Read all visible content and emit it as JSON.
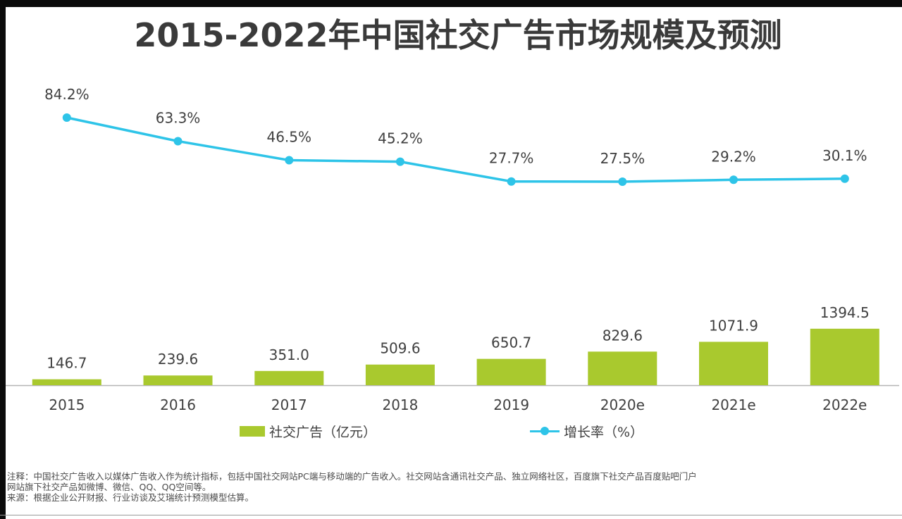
{
  "title": "2015-2022年中国社交广告市场规模及预测",
  "chart_data": {
    "type": "bar+line",
    "categories": [
      "2015",
      "2016",
      "2017",
      "2018",
      "2019",
      "2020e",
      "2021e",
      "2022e"
    ],
    "series": [
      {
        "name": "社交广告（亿元）",
        "type": "bar",
        "values": [
          146.7,
          239.6,
          351.0,
          509.6,
          650.7,
          829.6,
          1071.9,
          1394.5
        ],
        "labels": [
          "146.7",
          "239.6",
          "351.0",
          "509.6",
          "650.7",
          "829.6",
          "1071.9",
          "1394.5"
        ],
        "color": "#a9c92e"
      },
      {
        "name": "增长率（%）",
        "type": "line",
        "values": [
          84.2,
          63.3,
          46.5,
          45.2,
          27.7,
          27.5,
          29.2,
          30.1
        ],
        "labels": [
          "84.2%",
          "63.3%",
          "46.5%",
          "45.2%",
          "27.7%",
          "27.5%",
          "29.2%",
          "30.1%"
        ],
        "color": "#2ec4e8"
      }
    ],
    "legend_position": "bottom",
    "grid": false
  },
  "legend": {
    "bar_label": "社交广告（亿元）",
    "line_label": "增长率（%）"
  },
  "notes": {
    "line1": "注释：中国社交广告收入以媒体广告收入作为统计指标，包括中国社交网站PC端与移动端的广告收入。社交网站含通讯社交产品、独立网络社区，百度旗下社交产品百度贴吧门户",
    "line2": "网站旗下社交产品如微博、微信、QQ、QQ空间等。",
    "line3": "来源：根据企业公开财报、行业访谈及艾瑞统计预测模型估算。"
  }
}
